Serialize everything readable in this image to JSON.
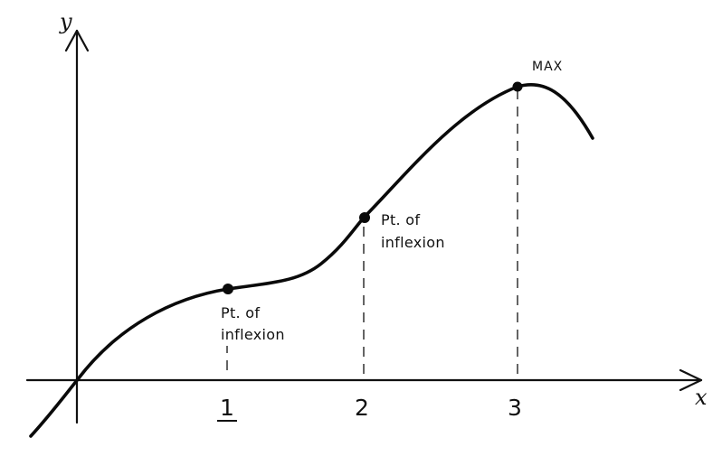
{
  "axes": {
    "x_label": "x",
    "y_label": "y",
    "ticks": [
      {
        "label": "1",
        "underlined": true
      },
      {
        "label": "2",
        "underlined": false
      },
      {
        "label": "3",
        "underlined": false
      }
    ]
  },
  "annotations": {
    "inflexion_1": {
      "line1": "Pt. of",
      "line2": "inflexion"
    },
    "inflexion_2": {
      "line1": "Pt. of",
      "line2": "inflexion"
    },
    "maximum": {
      "label": "MAX"
    }
  },
  "colors": {
    "ink": "#111111",
    "background": "#ffffff"
  }
}
